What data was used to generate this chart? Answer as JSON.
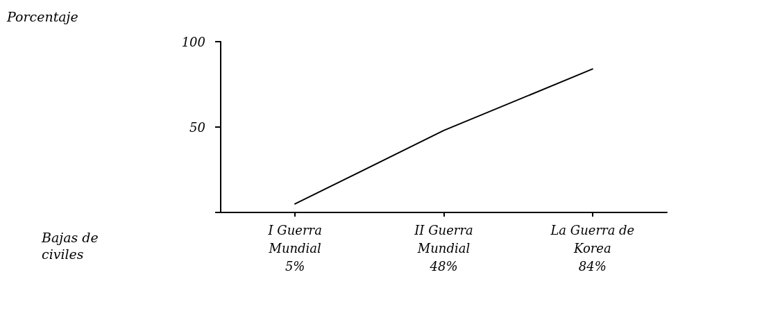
{
  "chart_data": {
    "type": "line",
    "annotations": [
      "Porcentaje",
      "Bajas de\nciviles"
    ],
    "categories": [
      "I Guerra\nMundial\n5%",
      "II Guerra\nMundial\n48%",
      "La Guerra de\nKorea\n84%"
    ],
    "values": [
      5,
      48,
      84
    ],
    "color": "#000000",
    "ylim": [
      0,
      100
    ],
    "yticks": [
      {
        "value": 0,
        "label": null
      },
      50,
      100
    ],
    "grid": false,
    "marker": "none",
    "line_style": "solid"
  }
}
